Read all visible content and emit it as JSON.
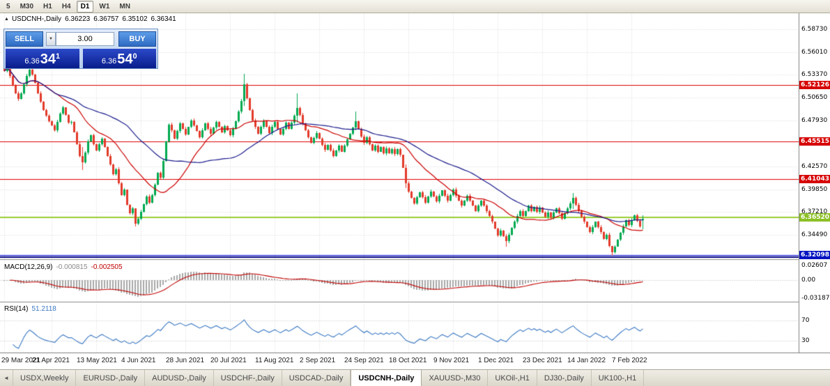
{
  "icons": {
    "one_click_toggle": "▲",
    "lot_spinner": "▼",
    "tab_scroll_left": "◄"
  },
  "toolbar": {
    "periods": [
      {
        "label": "5",
        "active": false
      },
      {
        "label": "M30",
        "active": false
      },
      {
        "label": "H1",
        "active": false
      },
      {
        "label": "H4",
        "active": false
      },
      {
        "label": "D1",
        "active": true
      },
      {
        "label": "W1",
        "active": false
      },
      {
        "label": "MN",
        "active": false
      }
    ]
  },
  "chart_header": {
    "symbol_title": "USDCNH-,Daily",
    "open": "6.36223",
    "high": "6.36757",
    "low": "6.35102",
    "close": "6.36341"
  },
  "trade_panel": {
    "sell_label": "SELL",
    "buy_label": "BUY",
    "lot_value": "3.00",
    "sell_price": {
      "prefix": "6.36",
      "big": "34",
      "sup": "1"
    },
    "buy_price": {
      "prefix": "6.36",
      "big": "54",
      "sup": "0"
    }
  },
  "price_axis": {
    "labels": [
      {
        "text": "6.58730",
        "value": 6.5873
      },
      {
        "text": "6.56010",
        "value": 6.5601
      },
      {
        "text": "6.53370",
        "value": 6.5337
      },
      {
        "text": "6.50650",
        "value": 6.5065
      },
      {
        "text": "6.47930",
        "value": 6.4793
      },
      {
        "text": "6.42570",
        "value": 6.4257
      },
      {
        "text": "6.39850",
        "value": 6.3985
      },
      {
        "text": "6.37210",
        "value": 6.3721
      },
      {
        "text": "6.34490",
        "value": 6.3449
      }
    ],
    "tags": [
      {
        "text": "6.52126",
        "value": 6.52126,
        "bg": "#d60000"
      },
      {
        "text": "6.45515",
        "value": 6.45515,
        "bg": "#d60000"
      },
      {
        "text": "6.41043",
        "value": 6.41043,
        "bg": "#d60000"
      },
      {
        "text": "6.36520",
        "value": 6.3652,
        "bg": "#8cbf26"
      },
      {
        "text": "6.32098",
        "value": 6.32098,
        "bg": "#0013c0"
      }
    ]
  },
  "indicator_panels": {
    "macd": {
      "name": "MACD(12,26,9)",
      "value1": "-0.000815",
      "value2": "-0.002505",
      "axis_labels": [
        {
          "text": "0.02607",
          "value": 0.02607
        },
        {
          "text": "0.00",
          "value": 0
        },
        {
          "text": "-0.031872",
          "value": -0.031872
        }
      ]
    },
    "rsi": {
      "name": "RSI(14)",
      "value": "51.2118",
      "levels": [
        {
          "text": "70",
          "value": 70
        },
        {
          "text": "30",
          "value": 30
        }
      ]
    }
  },
  "date_axis": [
    {
      "label": "29 Mar 2021",
      "bar": 0
    },
    {
      "label": "21 Apr 2021",
      "bar": 17
    },
    {
      "label": "13 May 2021",
      "bar": 33
    },
    {
      "label": "4 Jun 2021",
      "bar": 49
    },
    {
      "label": "28 Jun 2021",
      "bar": 65
    },
    {
      "label": "20 Jul 2021",
      "bar": 81
    },
    {
      "label": "11 Aug 2021",
      "bar": 97
    },
    {
      "label": "2 Sep 2021",
      "bar": 113
    },
    {
      "label": "24 Sep 2021",
      "bar": 129
    },
    {
      "label": "18 Oct 2021",
      "bar": 145
    },
    {
      "label": "9 Nov 2021",
      "bar": 161
    },
    {
      "label": "1 Dec 2021",
      "bar": 177
    },
    {
      "label": "23 Dec 2021",
      "bar": 193
    },
    {
      "label": "14 Jan 2022",
      "bar": 209
    },
    {
      "label": "7 Feb 2022",
      "bar": 225
    }
  ],
  "bottom_tabs": [
    {
      "label": "USDX,Weekly",
      "active": false
    },
    {
      "label": "EURUSD-,Daily",
      "active": false
    },
    {
      "label": "AUDUSD-,Daily",
      "active": false
    },
    {
      "label": "USDCHF-,Daily",
      "active": false
    },
    {
      "label": "USDCAD-,Daily",
      "active": false
    },
    {
      "label": "USDCNH-,Daily",
      "active": true
    },
    {
      "label": "XAUUSD-,M30",
      "active": false
    },
    {
      "label": "UKOil-,H1",
      "active": false
    },
    {
      "label": "DJ30-,Daily",
      "active": false
    },
    {
      "label": "UK100-,H1",
      "active": false
    }
  ],
  "chart_data": {
    "type": "candlestick",
    "symbol": "USDCNH",
    "timeframe": "Daily",
    "price_range": [
      6.316,
      6.6062
    ],
    "last_bar": {
      "open": 6.36223,
      "high": 6.36757,
      "low": 6.35102,
      "close": 6.36341
    },
    "closes": [
      6.538,
      6.545,
      6.532,
      6.521,
      6.512,
      6.505,
      6.512,
      6.522,
      6.532,
      6.54,
      6.534,
      6.524,
      6.512,
      6.502,
      6.492,
      6.485,
      6.479,
      6.474,
      6.468,
      6.478,
      6.488,
      6.495,
      6.486,
      6.477,
      6.478,
      6.466,
      6.452,
      6.438,
      6.43,
      6.442,
      6.455,
      6.462,
      6.452,
      6.444,
      6.452,
      6.458,
      6.448,
      6.438,
      6.428,
      6.416,
      6.422,
      6.406,
      6.392,
      6.398,
      6.38,
      6.37,
      6.376,
      6.358,
      6.364,
      6.372,
      6.381,
      6.39,
      6.383,
      6.392,
      6.404,
      6.418,
      6.412,
      6.432,
      6.455,
      6.475,
      6.468,
      6.458,
      6.467,
      6.476,
      6.47,
      6.463,
      6.472,
      6.48,
      6.474,
      6.467,
      6.46,
      6.468,
      6.476,
      6.47,
      6.464,
      6.471,
      6.478,
      6.472,
      6.466,
      6.473,
      6.468,
      6.462,
      6.47,
      6.479,
      6.49,
      6.503,
      6.522,
      6.506,
      6.492,
      6.48,
      6.472,
      6.464,
      6.472,
      6.479,
      6.472,
      6.465,
      6.472,
      6.478,
      6.47,
      6.463,
      6.47,
      6.477,
      6.47,
      6.477,
      6.485,
      6.494,
      6.486,
      6.476,
      6.468,
      6.46,
      6.453,
      6.459,
      6.465,
      6.458,
      6.451,
      6.445,
      6.451,
      6.444,
      6.438,
      6.444,
      6.45,
      6.443,
      6.45,
      6.457,
      6.464,
      6.471,
      6.479,
      6.47,
      6.461,
      6.453,
      6.46,
      6.452,
      6.444,
      6.45,
      6.443,
      6.448,
      6.441,
      6.447,
      6.441,
      6.446,
      6.44,
      6.446,
      6.439,
      6.424,
      6.406,
      6.396,
      6.388,
      6.382,
      6.389,
      6.395,
      6.389,
      6.383,
      6.39,
      6.396,
      6.39,
      6.384,
      6.391,
      6.397,
      6.391,
      6.385,
      6.392,
      6.398,
      6.391,
      6.385,
      6.379,
      6.385,
      6.391,
      6.385,
      6.379,
      6.373,
      6.379,
      6.385,
      6.379,
      6.373,
      6.367,
      6.36,
      6.352,
      6.344,
      6.35,
      6.343,
      6.337,
      6.345,
      6.353,
      6.36,
      6.367,
      6.373,
      6.367,
      6.373,
      6.379,
      6.373,
      6.378,
      6.372,
      6.377,
      6.371,
      6.366,
      6.371,
      6.365,
      6.371,
      6.376,
      6.37,
      6.364,
      6.37,
      6.376,
      6.382,
      6.388,
      6.38,
      6.373,
      6.366,
      6.36,
      6.354,
      6.348,
      6.354,
      6.36,
      6.354,
      6.348,
      6.34,
      6.345,
      6.332,
      6.324,
      6.331,
      6.339,
      6.347,
      6.355,
      6.362,
      6.356,
      6.362,
      6.368,
      6.361,
      6.355,
      6.3634
    ],
    "wick_overrides": {
      "28": [
        6.448,
        6.421
      ],
      "47": [
        6.367,
        6.3545
      ],
      "86": [
        6.5345,
        6.497
      ],
      "105": [
        6.512,
        6.477
      ],
      "126": [
        6.49,
        6.468
      ],
      "144": [
        6.428,
        6.4
      ],
      "180": [
        6.346,
        6.331
      ],
      "204": [
        6.394,
        6.375
      ],
      "218": [
        6.332,
        6.3205
      ]
    },
    "hlines": [
      {
        "price": 6.52126,
        "color": "#e00000",
        "width": 1
      },
      {
        "price": 6.45515,
        "color": "#e00000",
        "width": 1
      },
      {
        "price": 6.41043,
        "color": "#e00000",
        "width": 1
      },
      {
        "price": 6.3652,
        "color": "#9acd32",
        "width": 2
      },
      {
        "price": 6.32098,
        "color": "#0000d2",
        "width": 1
      },
      {
        "price": 6.3185,
        "color": "#000080",
        "width": 2
      }
    ],
    "moving_averages": [
      {
        "period": 20,
        "color": "#cc0000"
      },
      {
        "period": 45,
        "color": "#1a1a8c"
      }
    ],
    "macd": {
      "fast": 12,
      "slow": 26,
      "signal": 9,
      "range": [
        -0.03804,
        0.03223
      ],
      "histogram_color": "#a8a8a8",
      "signal_color": "#c00000"
    },
    "rsi": {
      "period": 14,
      "range": [
        6.5,
        102
      ],
      "color": "#3a78c3",
      "level_values": [
        70,
        30
      ]
    },
    "candle_colors": {
      "up": "#00a94f",
      "down": "#e23a2a"
    }
  }
}
